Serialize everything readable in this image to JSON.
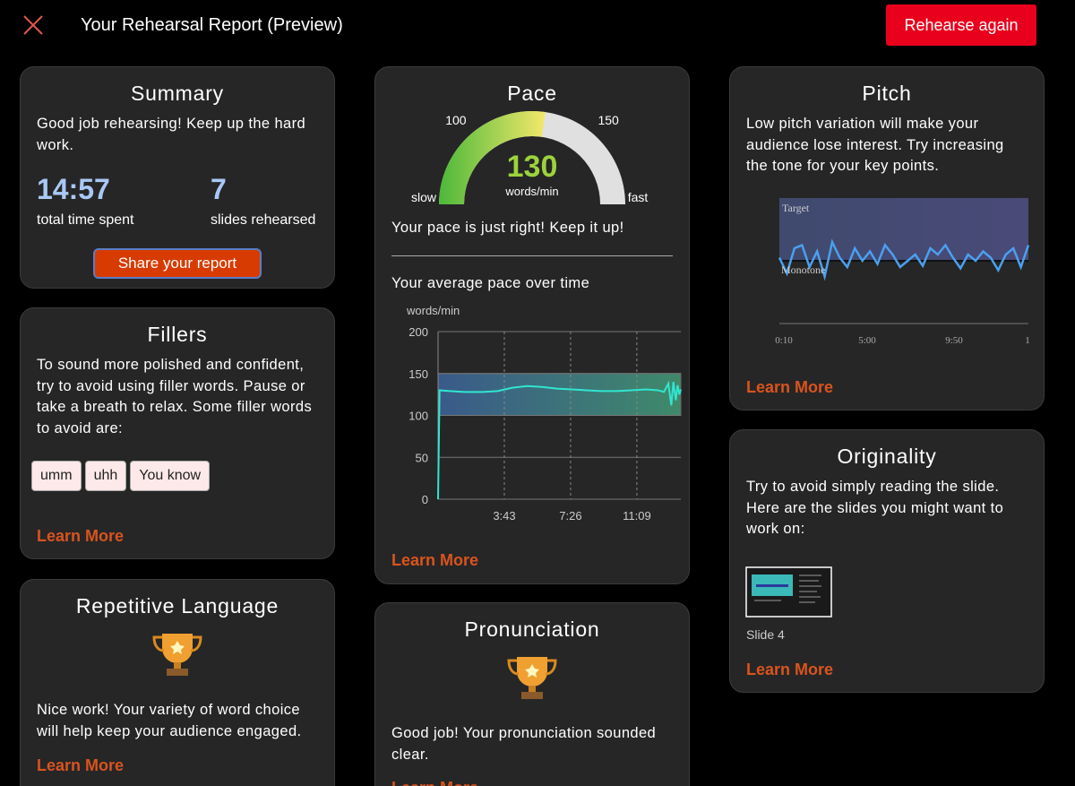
{
  "header": {
    "title": "Your Rehearsal Report (Preview)",
    "button": "Rehearse again"
  },
  "summary": {
    "title": "Summary",
    "text": "Good job rehearsing! Keep up the hard work.",
    "stats": [
      {
        "value": "14:57",
        "label": "total time spent"
      },
      {
        "value": "7",
        "label": "slides rehearsed"
      }
    ],
    "button": "Share your report"
  },
  "fillers": {
    "title": "Fillers",
    "text": "To sound more polished and confident, try to avoid using filler words. Pause or take a breath to relax. Some filler words to avoid are:",
    "words": [
      "umm",
      "uhh",
      "You know"
    ],
    "link": "Learn More"
  },
  "repetitive": {
    "title": "Repetitive Language",
    "text": "Nice work! Your variety of word choice will help keep your audience engaged.",
    "link": "Learn More"
  },
  "pace": {
    "title": "Pace",
    "gauge": {
      "lim": [
        70,
        180
      ],
      "ticks": [
        100,
        150
      ],
      "value": 130,
      "unit": "words/min",
      "min_label": "slow",
      "max_label": "fast"
    },
    "message": "Your pace is just right! Keep it up!",
    "chart": {
      "title": "Your average pace over time",
      "y_label": "words/min",
      "ylim": [
        0,
        200
      ],
      "yticks": [
        0,
        50,
        100,
        150,
        200
      ],
      "xlim": [
        0,
        817
      ],
      "xticks": [
        {
          "value": 223,
          "label": "3:43"
        },
        {
          "value": 446,
          "label": "7:26"
        },
        {
          "value": 669,
          "label": "11:09"
        }
      ],
      "target_band": [
        100,
        150
      ],
      "x": [
        0,
        5,
        40,
        90,
        150,
        200,
        250,
        300,
        350,
        400,
        450,
        500,
        550,
        600,
        650,
        700,
        740,
        760,
        775,
        785,
        792,
        800,
        806,
        812,
        817
      ],
      "y": [
        0,
        130,
        129,
        128,
        128,
        129,
        133,
        135,
        134,
        132,
        131,
        130,
        129,
        129,
        130,
        131,
        130,
        128,
        138,
        112,
        140,
        118,
        136,
        125,
        131
      ]
    },
    "link": "Learn More"
  },
  "pronunciation": {
    "title": "Pronunciation",
    "text": "Good job! Your pronunciation sounded clear.",
    "link": "Learn More"
  },
  "pitch": {
    "title": "Pitch",
    "text": "Low pitch variation will make your audience lose interest. Try increasing the tone for your key points.",
    "chart": {
      "target_label": "Target",
      "monotone_label": "Monotone",
      "ylim": [
        -1,
        1
      ],
      "xticks": [
        "0:10",
        "5:00",
        "9:50",
        "1"
      ],
      "values": [
        0.05,
        -0.2,
        0.2,
        0.25,
        -0.1,
        0.15,
        -0.25,
        0.3,
        0.05,
        -0.1,
        0.2,
        0.0,
        0.15,
        -0.05,
        0.25,
        0.1,
        -0.1,
        0.0,
        0.1,
        -0.08,
        0.2,
        0.1,
        0.25,
        0.05,
        -0.12,
        0.1,
        0.0,
        0.15,
        0.05,
        -0.15,
        0.1,
        0.2,
        -0.1,
        0.25
      ]
    },
    "link": "Learn More"
  },
  "originality": {
    "title": "Originality",
    "text": "Try to avoid simply reading the slide. Here are the slides you might want to work on:",
    "slide": "Slide 4",
    "link": "Learn More"
  }
}
